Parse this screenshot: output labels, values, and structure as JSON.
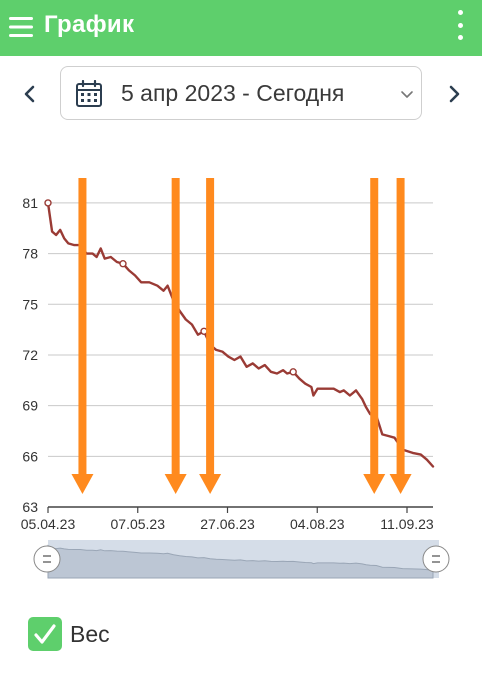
{
  "appbar": {
    "title": "График",
    "menu_icon": "hamburger-menu-icon",
    "more_icon": "more-vert-icon"
  },
  "period": {
    "label": "5 апр 2023 - Сегодня",
    "prev_icon": "chevron-left-icon",
    "next_icon": "chevron-right-icon",
    "calendar_icon": "calendar-icon",
    "dropdown_icon": "chevron-down-icon"
  },
  "chart_data": {
    "type": "line",
    "x_tick_labels": [
      "05.04.23",
      "07.05.23",
      "27.06.23",
      "04.08.23",
      "11.09.23"
    ],
    "y_ticks": [
      63,
      66,
      69,
      72,
      75,
      78,
      81
    ],
    "ylim": [
      63,
      82
    ],
    "xlim": [
      "2023-04-05",
      "2023-10-12"
    ],
    "grid": true,
    "series": [
      {
        "name": "Вес",
        "color": "#9a3b35",
        "points": [
          [
            "2023-04-05",
            81.0
          ],
          [
            "2023-04-07",
            79.3
          ],
          [
            "2023-04-09",
            79.1
          ],
          [
            "2023-04-11",
            79.4
          ],
          [
            "2023-04-13",
            78.9
          ],
          [
            "2023-04-15",
            78.6
          ],
          [
            "2023-04-18",
            78.5
          ],
          [
            "2023-04-21",
            78.5
          ],
          [
            "2023-04-24",
            78.0
          ],
          [
            "2023-04-27",
            78.0
          ],
          [
            "2023-04-29",
            77.8
          ],
          [
            "2023-05-01",
            78.3
          ],
          [
            "2023-05-03",
            77.7
          ],
          [
            "2023-05-06",
            77.8
          ],
          [
            "2023-05-09",
            77.5
          ],
          [
            "2023-05-12",
            77.4
          ],
          [
            "2023-05-15",
            77.0
          ],
          [
            "2023-05-18",
            76.7
          ],
          [
            "2023-05-21",
            76.3
          ],
          [
            "2023-05-25",
            76.3
          ],
          [
            "2023-05-29",
            76.1
          ],
          [
            "2023-06-01",
            75.8
          ],
          [
            "2023-06-03",
            76.1
          ],
          [
            "2023-06-06",
            75.2
          ],
          [
            "2023-06-09",
            74.6
          ],
          [
            "2023-06-12",
            74.1
          ],
          [
            "2023-06-15",
            73.8
          ],
          [
            "2023-06-18",
            73.2
          ],
          [
            "2023-06-21",
            73.4
          ],
          [
            "2023-06-24",
            72.6
          ],
          [
            "2023-06-27",
            72.3
          ],
          [
            "2023-06-30",
            72.2
          ],
          [
            "2023-07-03",
            71.9
          ],
          [
            "2023-07-06",
            71.7
          ],
          [
            "2023-07-09",
            71.9
          ],
          [
            "2023-07-12",
            71.3
          ],
          [
            "2023-07-15",
            71.5
          ],
          [
            "2023-07-18",
            71.2
          ],
          [
            "2023-07-21",
            71.4
          ],
          [
            "2023-07-24",
            71.0
          ],
          [
            "2023-07-27",
            70.9
          ],
          [
            "2023-07-30",
            71.1
          ],
          [
            "2023-08-01",
            70.9
          ],
          [
            "2023-08-04",
            71.0
          ],
          [
            "2023-08-07",
            70.6
          ],
          [
            "2023-08-10",
            70.3
          ],
          [
            "2023-08-13",
            70.1
          ],
          [
            "2023-08-14",
            69.6
          ],
          [
            "2023-08-16",
            70.0
          ],
          [
            "2023-08-20",
            70.0
          ],
          [
            "2023-08-24",
            70.0
          ],
          [
            "2023-08-27",
            69.8
          ],
          [
            "2023-08-29",
            69.9
          ],
          [
            "2023-09-01",
            69.6
          ],
          [
            "2023-09-04",
            69.9
          ],
          [
            "2023-09-07",
            69.4
          ],
          [
            "2023-09-09",
            68.9
          ],
          [
            "2023-09-11",
            68.5
          ],
          [
            "2023-09-14",
            68.4
          ],
          [
            "2023-09-17",
            67.3
          ],
          [
            "2023-09-20",
            67.2
          ],
          [
            "2023-09-23",
            67.1
          ],
          [
            "2023-09-27",
            66.4
          ],
          [
            "2023-10-02",
            66.2
          ],
          [
            "2023-10-06",
            66.1
          ],
          [
            "2023-10-09",
            65.8
          ],
          [
            "2023-10-12",
            65.4
          ]
        ],
        "markers": [
          [
            "2023-04-05",
            81.0
          ],
          [
            "2023-05-12",
            77.4
          ],
          [
            "2023-06-21",
            73.4
          ],
          [
            "2023-08-04",
            71.0
          ]
        ]
      }
    ],
    "annotations": {
      "type": "downward-arrows",
      "color": "#ff8a1e",
      "at_dates": [
        "2023-04-22",
        "2023-06-07",
        "2023-06-24",
        "2023-09-13",
        "2023-09-26"
      ]
    },
    "range_selector": {
      "handle_icon": "drag-handle-icon"
    }
  },
  "legend": {
    "label": "Вес",
    "checked": true,
    "check_icon": "checkmark-icon"
  }
}
